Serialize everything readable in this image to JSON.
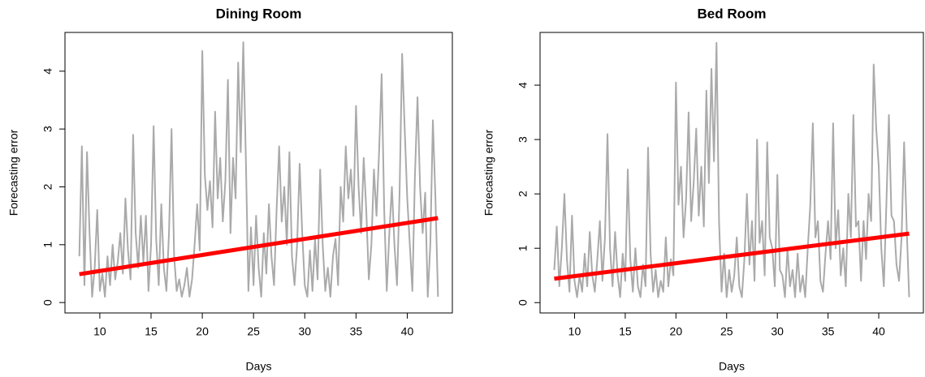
{
  "chart_data": [
    {
      "type": "line",
      "title": "Dining Room",
      "xlabel": "Days",
      "ylabel": "Forecasting error",
      "xlim": [
        6.6,
        44.4
      ],
      "ylim": [
        -0.18,
        4.67
      ],
      "xticks": [
        10,
        15,
        20,
        25,
        30,
        35,
        40
      ],
      "yticks": [
        0,
        1,
        2,
        3,
        4
      ],
      "series": [
        {
          "color": "#aaaaaa",
          "linewidth": 2,
          "x": [
            8,
            8.25,
            8.5,
            8.75,
            9,
            9.25,
            9.5,
            9.75,
            10,
            10.25,
            10.5,
            10.75,
            11,
            11.25,
            11.5,
            11.75,
            12,
            12.25,
            12.5,
            12.75,
            13,
            13.25,
            13.5,
            13.75,
            14,
            14.25,
            14.5,
            14.75,
            15,
            15.25,
            15.5,
            15.75,
            16,
            16.25,
            16.5,
            16.75,
            17,
            17.25,
            17.5,
            17.75,
            18,
            18.25,
            18.5,
            18.75,
            19,
            19.25,
            19.5,
            19.75,
            20,
            20.25,
            20.5,
            20.75,
            21,
            21.25,
            21.5,
            21.75,
            22,
            22.25,
            22.5,
            22.75,
            23,
            23.25,
            23.5,
            23.75,
            24,
            24.25,
            24.5,
            24.75,
            25,
            25.25,
            25.5,
            25.75,
            26,
            26.25,
            26.5,
            26.75,
            27,
            27.25,
            27.5,
            27.75,
            28,
            28.25,
            28.5,
            28.75,
            29,
            29.25,
            29.5,
            29.75,
            30,
            30.25,
            30.5,
            30.75,
            31,
            31.25,
            31.5,
            31.75,
            32,
            32.25,
            32.5,
            32.75,
            33,
            33.25,
            33.5,
            33.75,
            34,
            34.25,
            34.5,
            34.75,
            35,
            35.25,
            35.5,
            35.75,
            36,
            36.25,
            36.5,
            36.75,
            37,
            37.25,
            37.5,
            37.75,
            38,
            38.25,
            38.5,
            38.75,
            39,
            39.25,
            39.5,
            39.75,
            40,
            40.25,
            40.5,
            40.75,
            41,
            41.25,
            41.5,
            41.75,
            42,
            42.25,
            42.5,
            42.75,
            43
          ],
          "values": [
            0.8,
            2.7,
            0.3,
            2.6,
            1.2,
            0.1,
            0.6,
            1.6,
            0.2,
            0.5,
            0.1,
            0.8,
            0.3,
            1.0,
            0.4,
            0.7,
            1.2,
            0.5,
            1.8,
            0.9,
            0.4,
            2.9,
            1.2,
            0.6,
            1.5,
            0.7,
            1.5,
            0.2,
            1.0,
            3.05,
            1.1,
            0.3,
            1.7,
            0.6,
            0.2,
            1.2,
            3.0,
            0.8,
            0.2,
            0.4,
            0.1,
            0.3,
            0.6,
            0.1,
            0.4,
            1.0,
            1.7,
            0.9,
            4.35,
            2.2,
            1.6,
            2.1,
            1.3,
            3.3,
            1.8,
            2.5,
            1.4,
            2.1,
            3.85,
            1.2,
            2.5,
            1.8,
            4.15,
            2.6,
            4.5,
            2.5,
            0.2,
            1.3,
            0.3,
            1.5,
            0.6,
            0.1,
            1.2,
            0.5,
            1.7,
            0.8,
            0.3,
            1.6,
            2.7,
            1.4,
            2.0,
            1.0,
            2.6,
            0.8,
            0.3,
            1.0,
            2.4,
            1.2,
            0.3,
            0.1,
            0.9,
            0.2,
            1.1,
            0.4,
            2.3,
            1.0,
            0.2,
            0.6,
            0.1,
            0.8,
            1.1,
            0.3,
            2.0,
            1.4,
            2.7,
            1.8,
            2.3,
            1.5,
            3.4,
            2.0,
            1.2,
            2.5,
            1.6,
            0.4,
            1.0,
            2.3,
            1.5,
            2.6,
            3.95,
            1.6,
            0.2,
            1.2,
            2.0,
            1.0,
            0.3,
            1.9,
            4.3,
            3.0,
            1.8,
            1.0,
            0.2,
            2.2,
            3.55,
            2.0,
            1.2,
            1.9,
            0.1,
            1.0,
            3.15,
            1.8,
            0.1
          ]
        },
        {
          "color": "#ff0000",
          "linewidth": 5,
          "x": [
            8,
            43
          ],
          "values": [
            0.49,
            1.46
          ]
        }
      ]
    },
    {
      "type": "line",
      "title": "Bed Room",
      "xlabel": "Days",
      "ylabel": "Forecasting error",
      "xlim": [
        6.6,
        44.4
      ],
      "ylim": [
        -0.19,
        4.97
      ],
      "xticks": [
        10,
        15,
        20,
        25,
        30,
        35,
        40
      ],
      "yticks": [
        0,
        1,
        2,
        3,
        4
      ],
      "series": [
        {
          "color": "#aaaaaa",
          "linewidth": 2,
          "x": [
            8,
            8.25,
            8.5,
            8.75,
            9,
            9.25,
            9.5,
            9.75,
            10,
            10.25,
            10.5,
            10.75,
            11,
            11.25,
            11.5,
            11.75,
            12,
            12.25,
            12.5,
            12.75,
            13,
            13.25,
            13.5,
            13.75,
            14,
            14.25,
            14.5,
            14.75,
            15,
            15.25,
            15.5,
            15.75,
            16,
            16.25,
            16.5,
            16.75,
            17,
            17.25,
            17.5,
            17.75,
            18,
            18.25,
            18.5,
            18.75,
            19,
            19.25,
            19.5,
            19.75,
            20,
            20.25,
            20.5,
            20.75,
            21,
            21.25,
            21.5,
            21.75,
            22,
            22.25,
            22.5,
            22.75,
            23,
            23.25,
            23.5,
            23.75,
            24,
            24.25,
            24.5,
            24.75,
            25,
            25.25,
            25.5,
            25.75,
            26,
            26.25,
            26.5,
            26.75,
            27,
            27.25,
            27.5,
            27.75,
            28,
            28.25,
            28.5,
            28.75,
            29,
            29.25,
            29.5,
            29.75,
            30,
            30.25,
            30.5,
            30.75,
            31,
            31.25,
            31.5,
            31.75,
            32,
            32.25,
            32.5,
            32.75,
            33,
            33.25,
            33.5,
            33.75,
            34,
            34.25,
            34.5,
            34.75,
            35,
            35.25,
            35.5,
            35.75,
            36,
            36.25,
            36.5,
            36.75,
            37,
            37.25,
            37.5,
            37.75,
            38,
            38.25,
            38.5,
            38.75,
            39,
            39.25,
            39.5,
            39.75,
            40,
            40.25,
            40.5,
            40.75,
            41,
            41.25,
            41.5,
            41.75,
            42,
            42.25,
            42.5,
            42.75,
            43
          ],
          "values": [
            0.6,
            1.4,
            0.3,
            1.0,
            2.0,
            0.8,
            0.2,
            1.6,
            0.4,
            0.1,
            0.5,
            0.2,
            0.9,
            0.3,
            1.3,
            0.5,
            0.2,
            0.8,
            1.5,
            0.4,
            1.2,
            3.1,
            1.0,
            0.3,
            1.3,
            0.5,
            0.1,
            0.9,
            0.4,
            2.45,
            0.8,
            0.2,
            1.0,
            0.3,
            0.1,
            0.7,
            0.3,
            2.85,
            0.9,
            0.2,
            0.6,
            0.1,
            0.4,
            0.2,
            1.2,
            0.3,
            0.8,
            0.5,
            4.05,
            1.8,
            2.5,
            1.2,
            1.9,
            3.5,
            1.5,
            2.2,
            3.2,
            1.6,
            2.5,
            1.4,
            3.9,
            2.2,
            4.3,
            2.6,
            4.78,
            1.5,
            0.2,
            0.9,
            0.1,
            0.6,
            0.2,
            0.5,
            1.2,
            0.3,
            0.1,
            0.8,
            2.0,
            0.7,
            1.5,
            0.4,
            3.0,
            1.1,
            1.5,
            0.5,
            2.95,
            1.2,
            1.0,
            0.3,
            2.35,
            0.6,
            0.5,
            0.1,
            1.0,
            0.3,
            0.6,
            0.1,
            0.9,
            0.2,
            0.5,
            0.1,
            1.0,
            1.8,
            3.3,
            1.2,
            1.5,
            0.4,
            0.2,
            0.9,
            1.5,
            0.8,
            3.3,
            1.0,
            1.7,
            0.5,
            1.0,
            0.3,
            2.0,
            1.2,
            3.45,
            1.4,
            1.5,
            0.4,
            1.5,
            0.8,
            2.0,
            1.5,
            4.38,
            3.2,
            2.5,
            1.0,
            0.3,
            1.8,
            3.45,
            1.6,
            1.5,
            0.7,
            0.4,
            1.2,
            2.95,
            1.4,
            0.1
          ]
        },
        {
          "color": "#ff0000",
          "linewidth": 5,
          "x": [
            8,
            43
          ],
          "values": [
            0.44,
            1.27
          ]
        }
      ]
    }
  ]
}
